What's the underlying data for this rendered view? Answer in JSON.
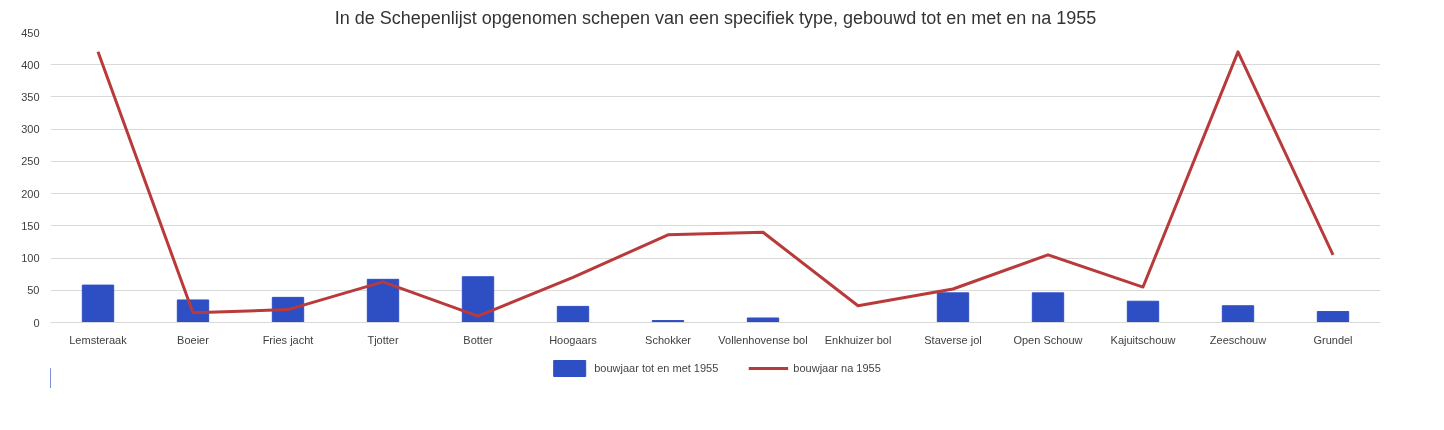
{
  "chart_data": {
    "type": "bar",
    "title": "In de Schepenlijst opgenomen schepen van een specifiek type, gebouwd tot en met en na 1955",
    "categories": [
      "Lemsteraak",
      "Boeier",
      "Fries jacht",
      "Tjotter",
      "Botter",
      "Hoogaars",
      "Schokker",
      "Vollenhovense bol",
      "Enkhuizer bol",
      "Staverse jol",
      "Open Schouw",
      "Kajuitschouw",
      "Zeeschouw",
      "Grundel"
    ],
    "series": [
      {
        "name": "bouwjaar tot en met 1955",
        "color": "#2e4fc4",
        "values": [
          58,
          35,
          39,
          67,
          71,
          25,
          3,
          7,
          0,
          46,
          46,
          33,
          26,
          17
        ]
      },
      {
        "name": "bouwjaar na 1955",
        "type": "line",
        "color": "#b83a3a",
        "values": [
          420,
          15,
          20,
          63,
          10,
          70,
          136,
          140,
          26,
          52,
          105,
          55,
          420,
          105
        ]
      }
    ],
    "ylim": [
      0,
      450
    ],
    "yticks": [
      0,
      50,
      100,
      150,
      200,
      250,
      300,
      350,
      400,
      450
    ],
    "grid": "y",
    "legend": "bottom"
  }
}
